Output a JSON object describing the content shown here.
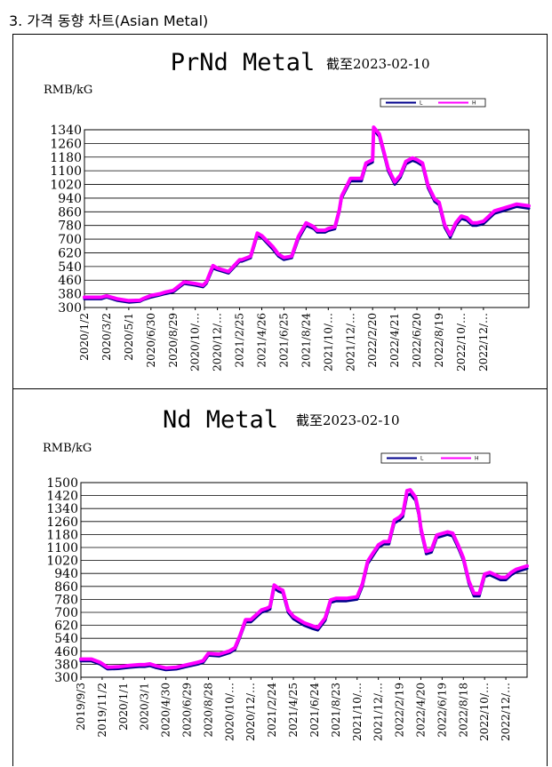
{
  "heading": "3. 가격 동향 차트(Asian Metal)",
  "chart_data": [
    {
      "type": "line",
      "title": "PrNd Metal",
      "date_label": "截至2023-02-10",
      "ylabel": "RMB/kG",
      "ylim": [
        300,
        1340
      ],
      "yticks": [
        300,
        380,
        460,
        540,
        620,
        700,
        780,
        860,
        940,
        1020,
        1100,
        1180,
        1260,
        1340
      ],
      "xlim": [
        0,
        40.1
      ],
      "xtick_labels": [
        "2020/1/2",
        "2020/3/2",
        "2020/5/1",
        "2020/6/30",
        "2020/8/29",
        "2020/10/…",
        "2020/12/…",
        "2021/2/25",
        "2021/4/26",
        "2021/6/25",
        "2021/8/24",
        "2021/10/…",
        "2021/12/…",
        "2022/2/20",
        "2022/4/21",
        "2022/6/20",
        "2022/8/19",
        "2022/10/…",
        "2022/12/…"
      ],
      "xtick_positions": [
        0,
        2,
        4,
        6,
        8,
        10,
        12,
        14,
        16,
        18,
        20,
        22,
        24,
        26,
        28,
        30,
        32,
        34,
        36
      ],
      "legend": [
        "L",
        "H"
      ],
      "series": [
        {
          "name": "L",
          "color": "#00008b",
          "x": [
            0,
            1.5,
            2,
            3,
            4,
            5,
            5.3,
            6,
            6.8,
            7.3,
            8,
            9,
            10,
            10.7,
            11,
            11.6,
            12,
            13,
            14,
            14.2,
            15,
            15.6,
            16,
            17,
            17.5,
            18,
            18.7,
            19.3,
            20,
            20.7,
            21,
            21.7,
            22,
            22.6,
            23,
            23.2,
            24,
            25,
            25.4,
            26,
            26.1,
            26.6,
            27,
            27.4,
            28,
            28.5,
            29,
            29.6,
            30,
            30.5,
            31,
            31.6,
            32,
            32.5,
            33,
            33.5,
            34,
            34.5,
            35,
            35.4,
            36,
            37,
            38,
            38.5,
            39,
            40.1
          ],
          "y": [
            350,
            350,
            360,
            340,
            330,
            335,
            345,
            360,
            372,
            380,
            390,
            440,
            430,
            420,
            440,
            530,
            520,
            500,
            570,
            570,
            590,
            720,
            710,
            640,
            600,
            580,
            590,
            700,
            780,
            760,
            740,
            740,
            750,
            760,
            860,
            940,
            1040,
            1040,
            1130,
            1150,
            1340,
            1300,
            1200,
            1100,
            1020,
            1060,
            1140,
            1160,
            1150,
            1130,
            1000,
            920,
            900,
            770,
            710,
            780,
            820,
            810,
            780,
            780,
            790,
            850,
            870,
            880,
            890,
            880
          ]
        },
        {
          "name": "H",
          "color": "#ff00ff",
          "x": [
            0,
            1.5,
            2,
            3,
            4,
            5,
            5.3,
            6,
            6.8,
            7.3,
            8,
            9,
            10,
            10.7,
            11,
            11.6,
            12,
            13,
            14,
            14.2,
            15,
            15.6,
            16,
            17,
            17.5,
            18,
            18.7,
            19.3,
            20,
            20.7,
            21,
            21.7,
            22,
            22.6,
            23,
            23.2,
            24,
            25,
            25.4,
            26,
            26.1,
            26.6,
            27,
            27.4,
            28,
            28.5,
            29,
            29.6,
            30,
            30.5,
            31,
            31.6,
            32,
            32.5,
            33,
            33.5,
            34,
            34.5,
            35,
            35.4,
            36,
            37,
            38,
            38.5,
            39,
            40.1
          ],
          "y": [
            360,
            360,
            368,
            350,
            340,
            342,
            352,
            370,
            380,
            390,
            400,
            450,
            440,
            430,
            450,
            545,
            530,
            510,
            580,
            580,
            600,
            735,
            720,
            655,
            612,
            592,
            600,
            715,
            795,
            772,
            752,
            752,
            762,
            772,
            872,
            952,
            1055,
            1055,
            1145,
            1165,
            1355,
            1315,
            1215,
            1115,
            1035,
            1075,
            1155,
            1175,
            1165,
            1145,
            1015,
            935,
            915,
            785,
            725,
            795,
            835,
            825,
            795,
            795,
            805,
            865,
            885,
            895,
            905,
            895
          ]
        }
      ]
    },
    {
      "type": "line",
      "title": "Nd Metal",
      "date_label": "截至2023-02-10",
      "ylabel": "RMB/kG",
      "ylim": [
        300,
        1500
      ],
      "yticks": [
        300,
        380,
        460,
        540,
        620,
        700,
        780,
        860,
        940,
        1020,
        1100,
        1180,
        1260,
        1340,
        1420,
        1500
      ],
      "xlim": [
        0,
        42
      ],
      "xtick_labels": [
        "2019/9/3",
        "2019/11/2",
        "2020/1/1",
        "2020/3/1",
        "2020/4/30",
        "2020/6/29",
        "2020/8/28",
        "2020/10/…",
        "2020/12/…",
        "2021/2/24",
        "2021/4/25",
        "2021/6/24",
        "2021/8/23",
        "2021/10/…",
        "2021/12/…",
        "2022/2/19",
        "2022/4/20",
        "2022/6/19",
        "2022/8/18",
        "2022/10/…",
        "2022/12/…"
      ],
      "xtick_positions": [
        0,
        2,
        4,
        6,
        8,
        10,
        12,
        14,
        16,
        18,
        20,
        22,
        24,
        26,
        28,
        30,
        32,
        34,
        36,
        38,
        40
      ],
      "legend": [
        "L",
        "H"
      ],
      "series": [
        {
          "name": "L",
          "color": "#00008b",
          "x": [
            0,
            1,
            1.8,
            2.5,
            3.5,
            4.5,
            5.5,
            6,
            6.5,
            7,
            8,
            9,
            10,
            11,
            11.5,
            12,
            13,
            14,
            14.5,
            15,
            15.5,
            16,
            17,
            17.5,
            17.8,
            18.2,
            18.6,
            19,
            19.5,
            20,
            21,
            21.8,
            22.3,
            23,
            23.5,
            24,
            25,
            26,
            26.5,
            27,
            28,
            28.5,
            29,
            29.5,
            30,
            30.3,
            30.7,
            31,
            31.5,
            31.8,
            32,
            32.5,
            33,
            33.5,
            34.5,
            35,
            35.5,
            36,
            36.5,
            37,
            37.5,
            38,
            38.5,
            39.5,
            40,
            40.5,
            41,
            42
          ],
          "y": [
            400,
            400,
            380,
            350,
            352,
            360,
            365,
            365,
            370,
            360,
            345,
            350,
            365,
            380,
            390,
            435,
            430,
            450,
            470,
            550,
            640,
            640,
            700,
            710,
            720,
            850,
            830,
            820,
            700,
            660,
            620,
            600,
            590,
            650,
            760,
            770,
            770,
            780,
            860,
            1000,
            1100,
            1120,
            1120,
            1250,
            1270,
            1290,
            1420,
            1430,
            1390,
            1300,
            1200,
            1060,
            1070,
            1160,
            1180,
            1170,
            1100,
            1020,
            880,
            800,
            800,
            920,
            930,
            900,
            900,
            930,
            950,
            970
          ]
        },
        {
          "name": "H",
          "color": "#ff00ff",
          "x": [
            0,
            1,
            1.8,
            2.5,
            3.5,
            4.5,
            5.5,
            6,
            6.5,
            7,
            8,
            9,
            10,
            11,
            11.5,
            12,
            13,
            14,
            14.5,
            15,
            15.5,
            16,
            17,
            17.5,
            17.8,
            18.2,
            18.6,
            19,
            19.5,
            20,
            21,
            21.8,
            22.3,
            23,
            23.5,
            24,
            25,
            26,
            26.5,
            27,
            28,
            28.5,
            29,
            29.5,
            30,
            30.3,
            30.7,
            31,
            31.5,
            31.8,
            32,
            32.5,
            33,
            33.5,
            34.5,
            35,
            35.5,
            36,
            36.5,
            37,
            37.5,
            38,
            38.5,
            39.5,
            40,
            40.5,
            41,
            42
          ],
          "y": [
            412,
            412,
            392,
            362,
            364,
            372,
            377,
            377,
            382,
            372,
            357,
            362,
            377,
            392,
            402,
            447,
            442,
            462,
            482,
            562,
            655,
            655,
            715,
            725,
            735,
            868,
            848,
            836,
            716,
            676,
            636,
            616,
            606,
            666,
            776,
            786,
            786,
            796,
            876,
            1016,
            1116,
            1136,
            1136,
            1268,
            1288,
            1308,
            1450,
            1455,
            1410,
            1318,
            1218,
            1076,
            1086,
            1176,
            1196,
            1188,
            1116,
            1036,
            896,
            816,
            816,
            936,
            946,
            916,
            916,
            946,
            966,
            986
          ]
        }
      ]
    }
  ]
}
